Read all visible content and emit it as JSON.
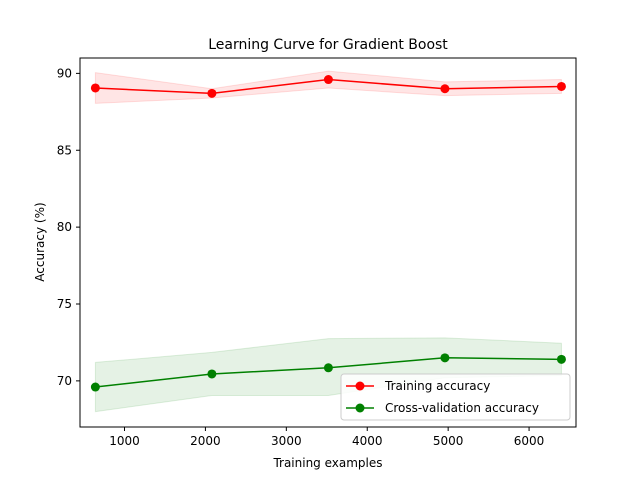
{
  "chart_data": {
    "type": "line",
    "title": "Learning Curve for Gradient Boost",
    "xlabel": "Training examples",
    "ylabel": "Accuracy (%)",
    "xlim": [
      450,
      6580
    ],
    "ylim": [
      67.0,
      91.0
    ],
    "xticks": [
      1000,
      2000,
      3000,
      4000,
      5000,
      6000
    ],
    "yticks": [
      70,
      75,
      80,
      85,
      90
    ],
    "grid": false,
    "legend_position": "lower-right",
    "series": [
      {
        "name": "Training accuracy",
        "color": "#ff0000",
        "band_color": "#ff0000",
        "x": [
          640,
          2080,
          3520,
          4960,
          6400
        ],
        "y": [
          89.05,
          88.7,
          89.6,
          89.0,
          89.15
        ],
        "upper": [
          90.05,
          89.0,
          90.15,
          89.45,
          89.6
        ],
        "lower": [
          88.05,
          88.4,
          89.05,
          88.55,
          88.7
        ]
      },
      {
        "name": "Cross-validation accuracy",
        "color": "#008000",
        "band_color": "#008000",
        "x": [
          640,
          2080,
          3520,
          4960,
          6400
        ],
        "y": [
          69.6,
          70.45,
          70.85,
          71.5,
          71.4
        ],
        "upper": [
          71.2,
          71.85,
          72.75,
          72.8,
          72.45
        ],
        "lower": [
          68.0,
          69.05,
          69.05,
          70.2,
          70.35
        ]
      }
    ]
  }
}
